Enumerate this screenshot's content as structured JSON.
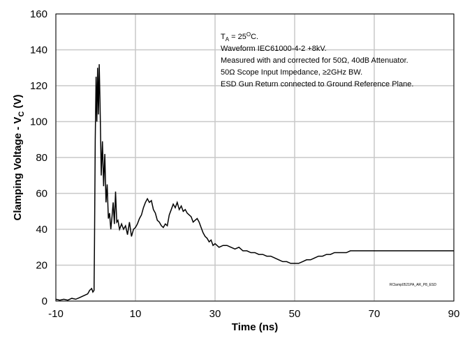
{
  "chart_data": {
    "type": "line",
    "title": "",
    "xlabel": "Time (ns)",
    "ylabel_main": "Clamping Voltage - V",
    "ylabel_sub": "C",
    "ylabel_unit": " (V)",
    "xlim": [
      -10,
      90
    ],
    "ylim": [
      0,
      160
    ],
    "x_ticks": [
      -10,
      10,
      30,
      50,
      70,
      90
    ],
    "y_ticks": [
      0,
      20,
      40,
      60,
      80,
      100,
      120,
      140,
      160
    ],
    "grid": true,
    "annotations": {
      "ta_prefix": "T",
      "ta_sub": "A",
      "ta_mid": " = 25",
      "ta_sup": "O",
      "ta_suffix": "C.",
      "lines": [
        "Waveform IEC61000-4-2 +8kV.",
        "Measured with and corrected for 50Ω, 40dB Attenuator.",
        "50Ω Scope Input Impedance, ≥2GHz BW.",
        "ESD Gun Return connected to Ground Reference Plane."
      ],
      "credit": "RClamp0521PA_AR_P8_ESD"
    },
    "series": [
      {
        "color": "#000000",
        "points": [
          [
            -10,
            1
          ],
          [
            -9,
            0.5
          ],
          [
            -8,
            1
          ],
          [
            -7,
            0.5
          ],
          [
            -6,
            1.5
          ],
          [
            -5,
            1
          ],
          [
            -4,
            2
          ],
          [
            -3,
            3
          ],
          [
            -2,
            4
          ],
          [
            -1.5,
            6
          ],
          [
            -1,
            7
          ],
          [
            -0.7,
            5
          ],
          [
            -0.4,
            6
          ],
          [
            -0.3,
            30
          ],
          [
            -0.1,
            90
          ],
          [
            0.1,
            125
          ],
          [
            0.3,
            100
          ],
          [
            0.5,
            130
          ],
          [
            0.7,
            104
          ],
          [
            0.9,
            132
          ],
          [
            1.1,
            110
          ],
          [
            1.4,
            70
          ],
          [
            1.7,
            89
          ],
          [
            2,
            64
          ],
          [
            2.3,
            82
          ],
          [
            2.6,
            55
          ],
          [
            2.9,
            65
          ],
          [
            3.2,
            46
          ],
          [
            3.5,
            49
          ],
          [
            3.8,
            40
          ],
          [
            4.1,
            47
          ],
          [
            4.4,
            55
          ],
          [
            4.7,
            43
          ],
          [
            5,
            61
          ],
          [
            5.3,
            44
          ],
          [
            5.6,
            45
          ],
          [
            6,
            40
          ],
          [
            6.5,
            43
          ],
          [
            7,
            40
          ],
          [
            7.5,
            42
          ],
          [
            8,
            37
          ],
          [
            8.5,
            44
          ],
          [
            9,
            36
          ],
          [
            9.5,
            40
          ],
          [
            10,
            41
          ],
          [
            10.5,
            43
          ],
          [
            11,
            46
          ],
          [
            11.5,
            48
          ],
          [
            12,
            52
          ],
          [
            12.5,
            55
          ],
          [
            13,
            57
          ],
          [
            13.5,
            55
          ],
          [
            14,
            56
          ],
          [
            14.5,
            51
          ],
          [
            15,
            49
          ],
          [
            15.5,
            45
          ],
          [
            16,
            44
          ],
          [
            16.5,
            42
          ],
          [
            17,
            41
          ],
          [
            17.5,
            43
          ],
          [
            18,
            42
          ],
          [
            18.5,
            48
          ],
          [
            19,
            51
          ],
          [
            19.5,
            54
          ],
          [
            20,
            52
          ],
          [
            20.5,
            55
          ],
          [
            21,
            51
          ],
          [
            21.5,
            53
          ],
          [
            22,
            50
          ],
          [
            22.5,
            51
          ],
          [
            23,
            49
          ],
          [
            23.5,
            48
          ],
          [
            24,
            47
          ],
          [
            24.5,
            44
          ],
          [
            25,
            45
          ],
          [
            25.5,
            46
          ],
          [
            26,
            44
          ],
          [
            26.5,
            41
          ],
          [
            27,
            38
          ],
          [
            27.5,
            36
          ],
          [
            28,
            35
          ],
          [
            28.5,
            33
          ],
          [
            29,
            34
          ],
          [
            29.5,
            31
          ],
          [
            30,
            32
          ],
          [
            31,
            30
          ],
          [
            32,
            31
          ],
          [
            33,
            31
          ],
          [
            34,
            30
          ],
          [
            35,
            29
          ],
          [
            36,
            30
          ],
          [
            37,
            28
          ],
          [
            38,
            28
          ],
          [
            39,
            27
          ],
          [
            40,
            27
          ],
          [
            41,
            26
          ],
          [
            42,
            26
          ],
          [
            43,
            25
          ],
          [
            44,
            25
          ],
          [
            45,
            24
          ],
          [
            46,
            23
          ],
          [
            47,
            22
          ],
          [
            48,
            22
          ],
          [
            49,
            21
          ],
          [
            50,
            21
          ],
          [
            51,
            21
          ],
          [
            52,
            22
          ],
          [
            53,
            23
          ],
          [
            54,
            23
          ],
          [
            55,
            24
          ],
          [
            56,
            25
          ],
          [
            57,
            25
          ],
          [
            58,
            26
          ],
          [
            59,
            26
          ],
          [
            60,
            27
          ],
          [
            61,
            27
          ],
          [
            62,
            27
          ],
          [
            63,
            27
          ],
          [
            64,
            28
          ],
          [
            65,
            28
          ],
          [
            66,
            28
          ],
          [
            67,
            28
          ],
          [
            68,
            28
          ],
          [
            69,
            28
          ],
          [
            70,
            28
          ],
          [
            71,
            28
          ],
          [
            72,
            28
          ],
          [
            73,
            28
          ],
          [
            74,
            28
          ],
          [
            75,
            28
          ],
          [
            76,
            28
          ],
          [
            77,
            28
          ],
          [
            78,
            28
          ],
          [
            79,
            28
          ],
          [
            80,
            28
          ],
          [
            81,
            28
          ],
          [
            82,
            28
          ],
          [
            83,
            28
          ],
          [
            84,
            28
          ],
          [
            85,
            28
          ],
          [
            86,
            28
          ],
          [
            87,
            28
          ],
          [
            88,
            28
          ],
          [
            89,
            28
          ],
          [
            90,
            28
          ]
        ]
      }
    ]
  }
}
